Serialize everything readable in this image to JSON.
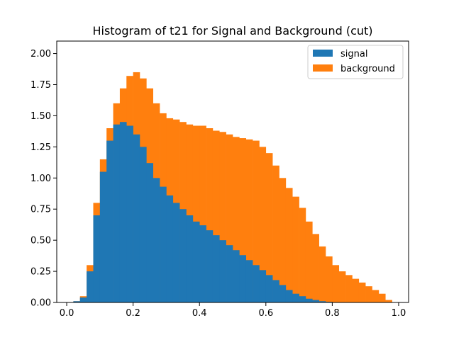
{
  "chart_data": {
    "type": "bar",
    "title": "Histogram of t21 for Signal and Background (cut)",
    "xlabel": "",
    "ylabel": "",
    "xlim": [
      -0.03,
      1.03
    ],
    "ylim": [
      0,
      2.1
    ],
    "xticks": [
      0.0,
      0.2,
      0.4,
      0.6,
      0.8,
      1.0
    ],
    "xtick_labels": [
      "0.0",
      "0.2",
      "0.4",
      "0.6",
      "0.8",
      "1.0"
    ],
    "yticks": [
      0.0,
      0.25,
      0.5,
      0.75,
      1.0,
      1.25,
      1.5,
      1.75,
      2.0
    ],
    "ytick_labels": [
      "0.00",
      "0.25",
      "0.50",
      "0.75",
      "1.00",
      "1.25",
      "1.50",
      "1.75",
      "2.00"
    ],
    "grid": false,
    "legend_position": "top-right",
    "bin_start": 0.0,
    "bin_width": 0.02,
    "x": [
      0.01,
      0.03,
      0.05,
      0.07,
      0.09,
      0.11,
      0.13,
      0.15,
      0.17,
      0.19,
      0.21,
      0.23,
      0.25,
      0.27,
      0.29,
      0.31,
      0.33,
      0.35,
      0.37,
      0.39,
      0.41,
      0.43,
      0.45,
      0.47,
      0.49,
      0.51,
      0.53,
      0.55,
      0.57,
      0.59,
      0.61,
      0.63,
      0.65,
      0.67,
      0.69,
      0.71,
      0.73,
      0.75,
      0.77,
      0.79,
      0.81,
      0.83,
      0.85,
      0.87,
      0.89,
      0.91,
      0.93,
      0.95,
      0.97,
      0.99
    ],
    "series": [
      {
        "name": "background",
        "color": "#ff7f0e",
        "values": [
          0.0,
          0.01,
          0.05,
          0.3,
          0.8,
          1.15,
          1.4,
          1.6,
          1.72,
          1.82,
          1.85,
          1.8,
          1.72,
          1.6,
          1.52,
          1.48,
          1.47,
          1.45,
          1.43,
          1.42,
          1.42,
          1.4,
          1.38,
          1.37,
          1.35,
          1.33,
          1.32,
          1.31,
          1.3,
          1.25,
          1.2,
          1.1,
          1.0,
          0.92,
          0.85,
          0.76,
          0.65,
          0.55,
          0.45,
          0.37,
          0.3,
          0.25,
          0.22,
          0.19,
          0.16,
          0.13,
          0.1,
          0.07,
          0.02,
          0.0
        ]
      },
      {
        "name": "signal",
        "color": "#1f77b4",
        "values": [
          0.0,
          0.01,
          0.04,
          0.25,
          0.7,
          1.05,
          1.3,
          1.43,
          1.45,
          1.42,
          1.35,
          1.25,
          1.12,
          1.0,
          0.93,
          0.86,
          0.8,
          0.75,
          0.7,
          0.65,
          0.62,
          0.58,
          0.54,
          0.5,
          0.46,
          0.42,
          0.38,
          0.34,
          0.3,
          0.26,
          0.22,
          0.18,
          0.14,
          0.1,
          0.07,
          0.05,
          0.03,
          0.02,
          0.01,
          0.005,
          0.002,
          0.0,
          0.0,
          0.0,
          0.0,
          0.0,
          0.0,
          0.0,
          0.0,
          0.0
        ]
      }
    ],
    "legend_entries": [
      "signal",
      "background"
    ]
  }
}
